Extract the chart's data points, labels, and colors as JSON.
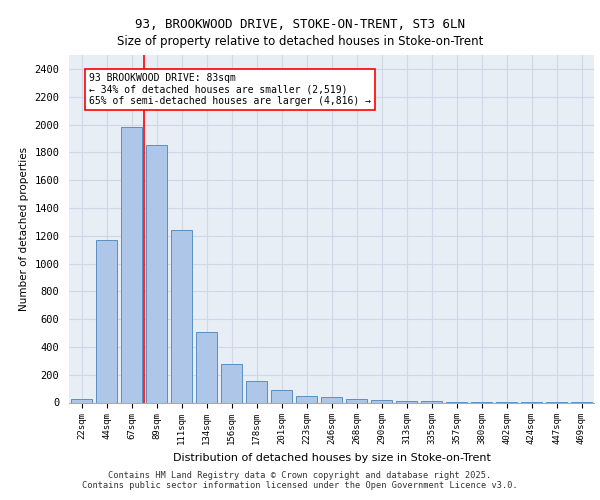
{
  "title_line1": "93, BROOKWOOD DRIVE, STOKE-ON-TRENT, ST3 6LN",
  "title_line2": "Size of property relative to detached houses in Stoke-on-Trent",
  "xlabel": "Distribution of detached houses by size in Stoke-on-Trent",
  "ylabel": "Number of detached properties",
  "categories": [
    "22sqm",
    "44sqm",
    "67sqm",
    "89sqm",
    "111sqm",
    "134sqm",
    "156sqm",
    "178sqm",
    "201sqm",
    "223sqm",
    "246sqm",
    "268sqm",
    "290sqm",
    "313sqm",
    "335sqm",
    "357sqm",
    "380sqm",
    "402sqm",
    "424sqm",
    "447sqm",
    "469sqm"
  ],
  "values": [
    28,
    1170,
    1980,
    1850,
    1240,
    510,
    275,
    155,
    90,
    50,
    40,
    25,
    20,
    10,
    8,
    5,
    3,
    2,
    2,
    1,
    1
  ],
  "bar_color": "#aec6e8",
  "bar_edge_color": "#5a8fc2",
  "grid_color": "#d0d8e8",
  "background_color": "#e8eef6",
  "vline_x_index": 2,
  "vline_color": "red",
  "annotation_text": "93 BROOKWOOD DRIVE: 83sqm\n← 34% of detached houses are smaller (2,519)\n65% of semi-detached houses are larger (4,816) →",
  "annotation_box_color": "white",
  "annotation_box_edge_color": "red",
  "ylim": [
    0,
    2500
  ],
  "yticks": [
    0,
    200,
    400,
    600,
    800,
    1000,
    1200,
    1400,
    1600,
    1800,
    2000,
    2200,
    2400
  ],
  "footer_line1": "Contains HM Land Registry data © Crown copyright and database right 2025.",
  "footer_line2": "Contains public sector information licensed under the Open Government Licence v3.0."
}
